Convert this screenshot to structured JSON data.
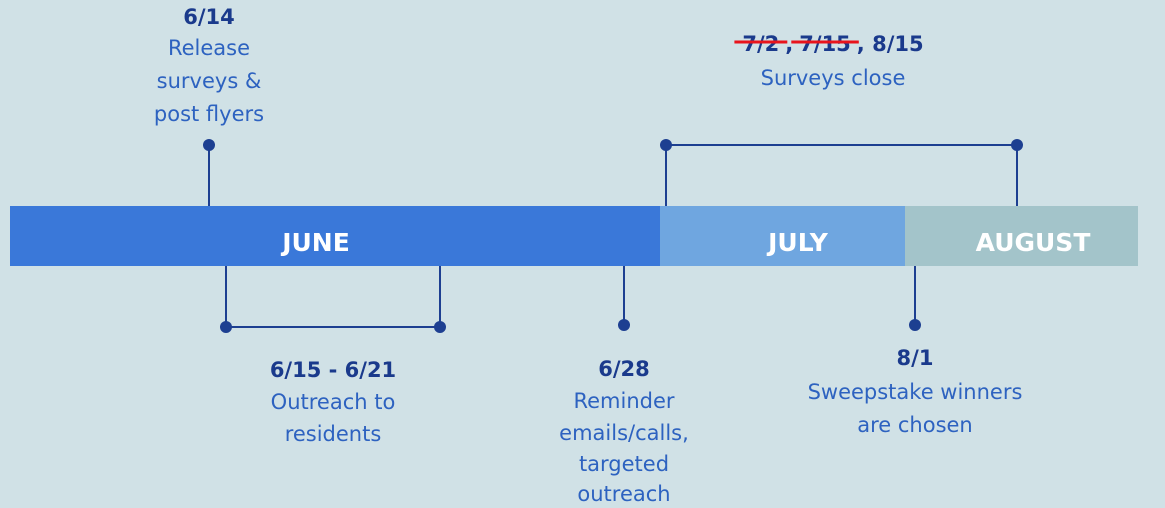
{
  "periods": [
    {
      "label": "JUNE"
    },
    {
      "label": "JULY"
    },
    {
      "label": "AUGUST"
    }
  ],
  "events": [
    {
      "date": "6/14",
      "description": [
        "Release",
        "surveys &",
        "post flyers"
      ]
    },
    {
      "date": "6/15 - 6/21",
      "description": [
        "Outreach to",
        "residents"
      ]
    },
    {
      "date": "6/28",
      "description": [
        "Reminder",
        "emails/calls,",
        "targeted",
        "outreach"
      ]
    },
    {
      "date_parts": [
        {
          "text": "7/2",
          "struck": true
        },
        {
          "text": ","
        },
        {
          "text": "7/15",
          "struck": true
        },
        {
          "text": ", 8/15"
        }
      ],
      "description": [
        "Surveys close"
      ]
    },
    {
      "date": "8/1",
      "description": [
        "Sweepstake winners",
        "are chosen"
      ]
    }
  ]
}
